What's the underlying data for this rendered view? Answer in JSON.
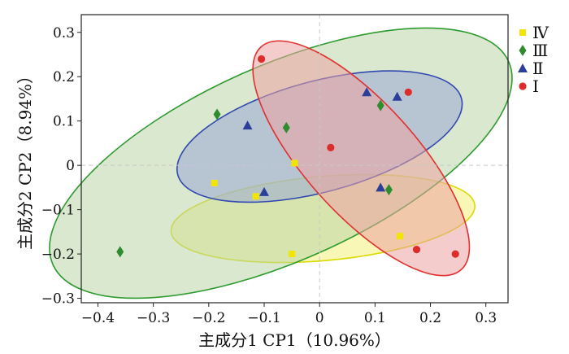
{
  "chart_data": {
    "type": "scatter",
    "xlabel": "主成分1 CP1（10.96%）",
    "ylabel": "主成分2 CP2（8.94%）",
    "xlim": [
      -0.43,
      0.34
    ],
    "ylim": [
      -0.31,
      0.34
    ],
    "x_ticks": [
      {
        "value": -0.4,
        "label": "−0.4"
      },
      {
        "value": -0.3,
        "label": "−0.3"
      },
      {
        "value": -0.2,
        "label": "−0.2"
      },
      {
        "value": -0.1,
        "label": "−0.1"
      },
      {
        "value": 0,
        "label": "0"
      },
      {
        "value": 0.1,
        "label": "0.1"
      },
      {
        "value": 0.2,
        "label": "0.2"
      },
      {
        "value": 0.3,
        "label": "0.3"
      }
    ],
    "y_ticks": [
      {
        "value": -0.3,
        "label": "−0.3"
      },
      {
        "value": -0.2,
        "label": "−0.2"
      },
      {
        "value": -0.1,
        "label": "−0.1"
      },
      {
        "value": 0,
        "label": "0"
      },
      {
        "value": 0.1,
        "label": "0.1"
      },
      {
        "value": 0.2,
        "label": "0.2"
      },
      {
        "value": 0.3,
        "label": "0.3"
      }
    ],
    "grid": false,
    "reference_lines": "dashed at x=0 and y=0",
    "legend_position": "right",
    "series": [
      {
        "name": "Ⅳ",
        "marker": "square",
        "color": "#f2e600",
        "fill": "#f2f07a",
        "stroke": "#dada00",
        "points": [
          [
            -0.19,
            -0.04
          ],
          [
            -0.115,
            -0.07
          ],
          [
            -0.045,
            0.005
          ],
          [
            -0.05,
            -0.2
          ],
          [
            0.145,
            -0.16
          ]
        ],
        "ellipse": {
          "cx": 0.006,
          "cy": -0.12,
          "rx": 0.275,
          "ry": 0.095,
          "angle_deg": 5
        }
      },
      {
        "name": "Ⅲ",
        "marker": "diamond",
        "color": "#2e8b2e",
        "fill": "#bcd6a8",
        "stroke": "#2e9b2e",
        "points": [
          [
            -0.36,
            -0.195
          ],
          [
            -0.185,
            0.115
          ],
          [
            -0.06,
            0.085
          ],
          [
            0.11,
            0.135
          ],
          [
            0.125,
            -0.055
          ]
        ],
        "ellipse": {
          "cx": -0.07,
          "cy": 0.005,
          "rx": 0.45,
          "ry": 0.22,
          "angle_deg": 24
        }
      },
      {
        "name": "Ⅱ",
        "marker": "triangle",
        "color": "#2b3f9a",
        "fill": "#9aa7d6",
        "stroke": "#3048b0",
        "points": [
          [
            -0.13,
            0.09
          ],
          [
            -0.1,
            -0.06
          ],
          [
            0.085,
            0.165
          ],
          [
            0.14,
            0.155
          ],
          [
            0.11,
            -0.05
          ]
        ],
        "ellipse": {
          "cx": 0.0,
          "cy": 0.065,
          "rx": 0.265,
          "ry": 0.125,
          "angle_deg": 15
        }
      },
      {
        "name": "Ⅰ",
        "marker": "circle",
        "color": "#dd2c2c",
        "fill": "#eda3a3",
        "stroke": "#e03030",
        "points": [
          [
            -0.105,
            0.24
          ],
          [
            0.02,
            0.04
          ],
          [
            0.16,
            0.165
          ],
          [
            0.175,
            -0.19
          ],
          [
            0.245,
            -0.2
          ]
        ],
        "ellipse": {
          "cx": 0.075,
          "cy": 0.016,
          "rx": 0.27,
          "ry": 0.125,
          "angle_deg": -48
        }
      }
    ]
  }
}
